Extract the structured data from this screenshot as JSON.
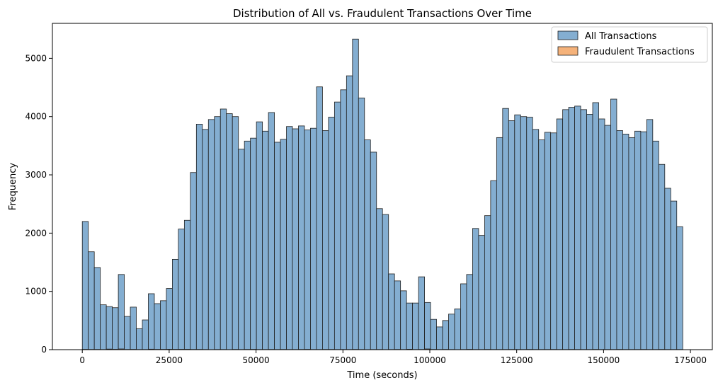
{
  "chart_data": {
    "type": "histogram",
    "title": "Distribution of All vs. Fraudulent Transactions Over Time",
    "xlabel": "Time (seconds)",
    "ylabel": "Frequency",
    "xlim": [
      -8600,
      181300
    ],
    "ylim": [
      0,
      5600
    ],
    "x_ticks": [
      0,
      25000,
      50000,
      75000,
      100000,
      125000,
      150000,
      175000
    ],
    "x_tick_labels": [
      "0",
      "25000",
      "50000",
      "75000",
      "100000",
      "125000",
      "150000",
      "175000"
    ],
    "y_ticks": [
      0,
      1000,
      2000,
      3000,
      4000,
      5000
    ],
    "y_tick_labels": [
      "0",
      "1000",
      "2000",
      "3000",
      "4000",
      "5000"
    ],
    "grid": false,
    "legend_position": "top-right",
    "bin_start": 0,
    "bin_width": 1727.9,
    "series": [
      {
        "name": "All Transactions",
        "color": "#84aed1",
        "edge_color": "#1f1f1f",
        "values": [
          2200,
          1680,
          1410,
          770,
          740,
          720,
          1290,
          570,
          730,
          360,
          510,
          960,
          790,
          840,
          1050,
          1550,
          2070,
          2220,
          3040,
          3870,
          3780,
          3950,
          4000,
          4130,
          4050,
          4000,
          3440,
          3580,
          3630,
          3910,
          3750,
          4070,
          3560,
          3610,
          3830,
          3790,
          3840,
          3770,
          3800,
          4510,
          3760,
          3990,
          4250,
          4460,
          4700,
          5330,
          4320,
          3600,
          3390,
          2420,
          2320,
          1300,
          1180,
          1010,
          800,
          800,
          1250,
          810,
          520,
          390,
          500,
          610,
          700,
          1130,
          1290,
          2080,
          1960,
          2300,
          2900,
          3640,
          4140,
          3930,
          4030,
          4000,
          3990,
          3780,
          3600,
          3730,
          3720,
          3960,
          4120,
          4160,
          4180,
          4120,
          4040,
          4240,
          3960,
          3850,
          4300,
          3760,
          3700,
          3640,
          3750,
          3740,
          3950,
          3580,
          3180,
          2770,
          2550,
          2110
        ]
      },
      {
        "name": "Fraudulent Transactions",
        "color": "#f5b27a",
        "edge_color": "#1f1f1f",
        "values": [
          5,
          4,
          4,
          3,
          10,
          6,
          12,
          4,
          5,
          3,
          3,
          8,
          5,
          5,
          6,
          5,
          6,
          6,
          4,
          4,
          3,
          2,
          3,
          3,
          2,
          4,
          3,
          4,
          5,
          3,
          3,
          4,
          3,
          4,
          3,
          3,
          4,
          5,
          3,
          3,
          4,
          4,
          3,
          3,
          3,
          4,
          3,
          2,
          3,
          3,
          2,
          3,
          4,
          3,
          7,
          3,
          4,
          12,
          4,
          3,
          4,
          3,
          2,
          3,
          5,
          3,
          3,
          4,
          3,
          3,
          3,
          4,
          3,
          3,
          4,
          3,
          3,
          3,
          4,
          3,
          3,
          4,
          3,
          3,
          3,
          4,
          3,
          3,
          3,
          4,
          3,
          3,
          3,
          4,
          3,
          3,
          4,
          3,
          3,
          3
        ]
      }
    ]
  }
}
